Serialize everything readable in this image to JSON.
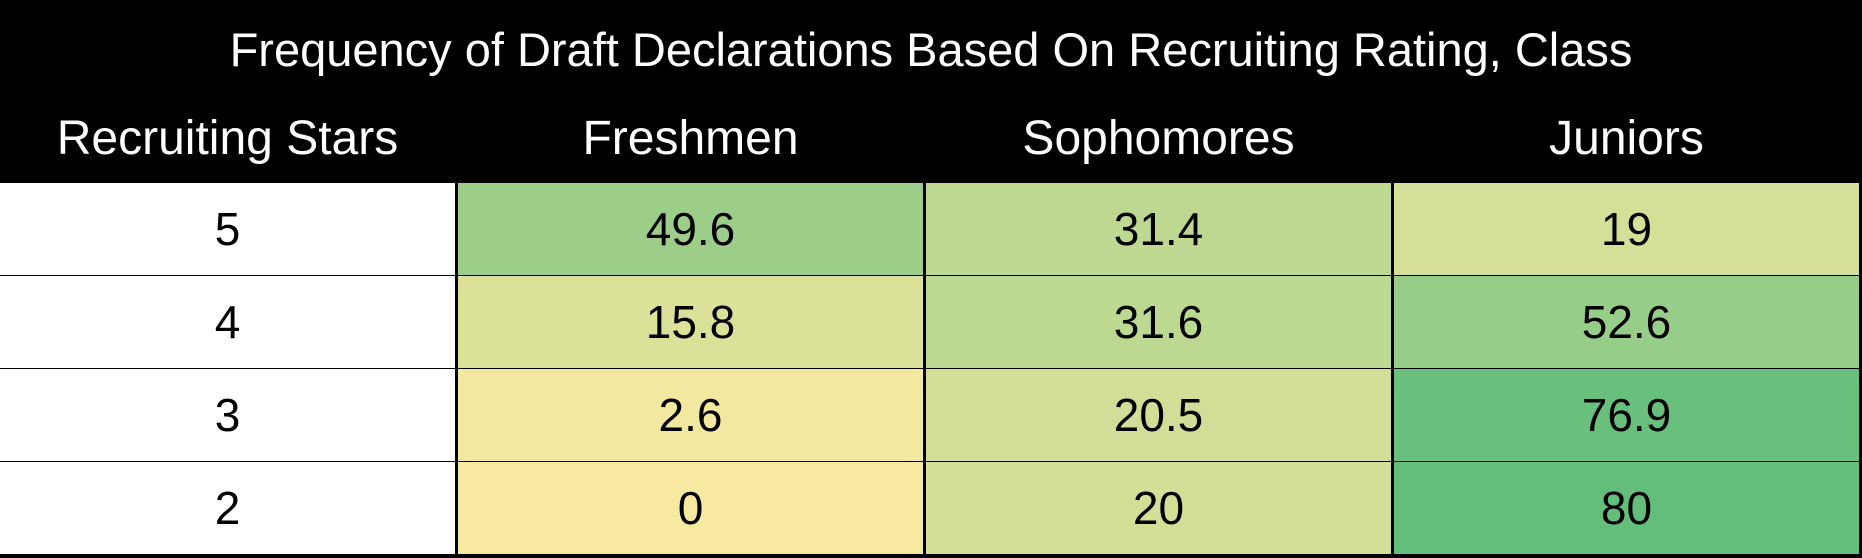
{
  "title": "Frequency of Draft Declarations Based On Recruiting Rating, Class",
  "table": {
    "columns": [
      "Recruiting Stars",
      "Freshmen",
      "Sophomores",
      "Juniors"
    ],
    "rows": [
      [
        5,
        49.6,
        31.4,
        19
      ],
      [
        4,
        15.8,
        31.6,
        52.6
      ],
      [
        3,
        2.6,
        20.5,
        76.9
      ],
      [
        2,
        0,
        20,
        80
      ]
    ]
  }
}
